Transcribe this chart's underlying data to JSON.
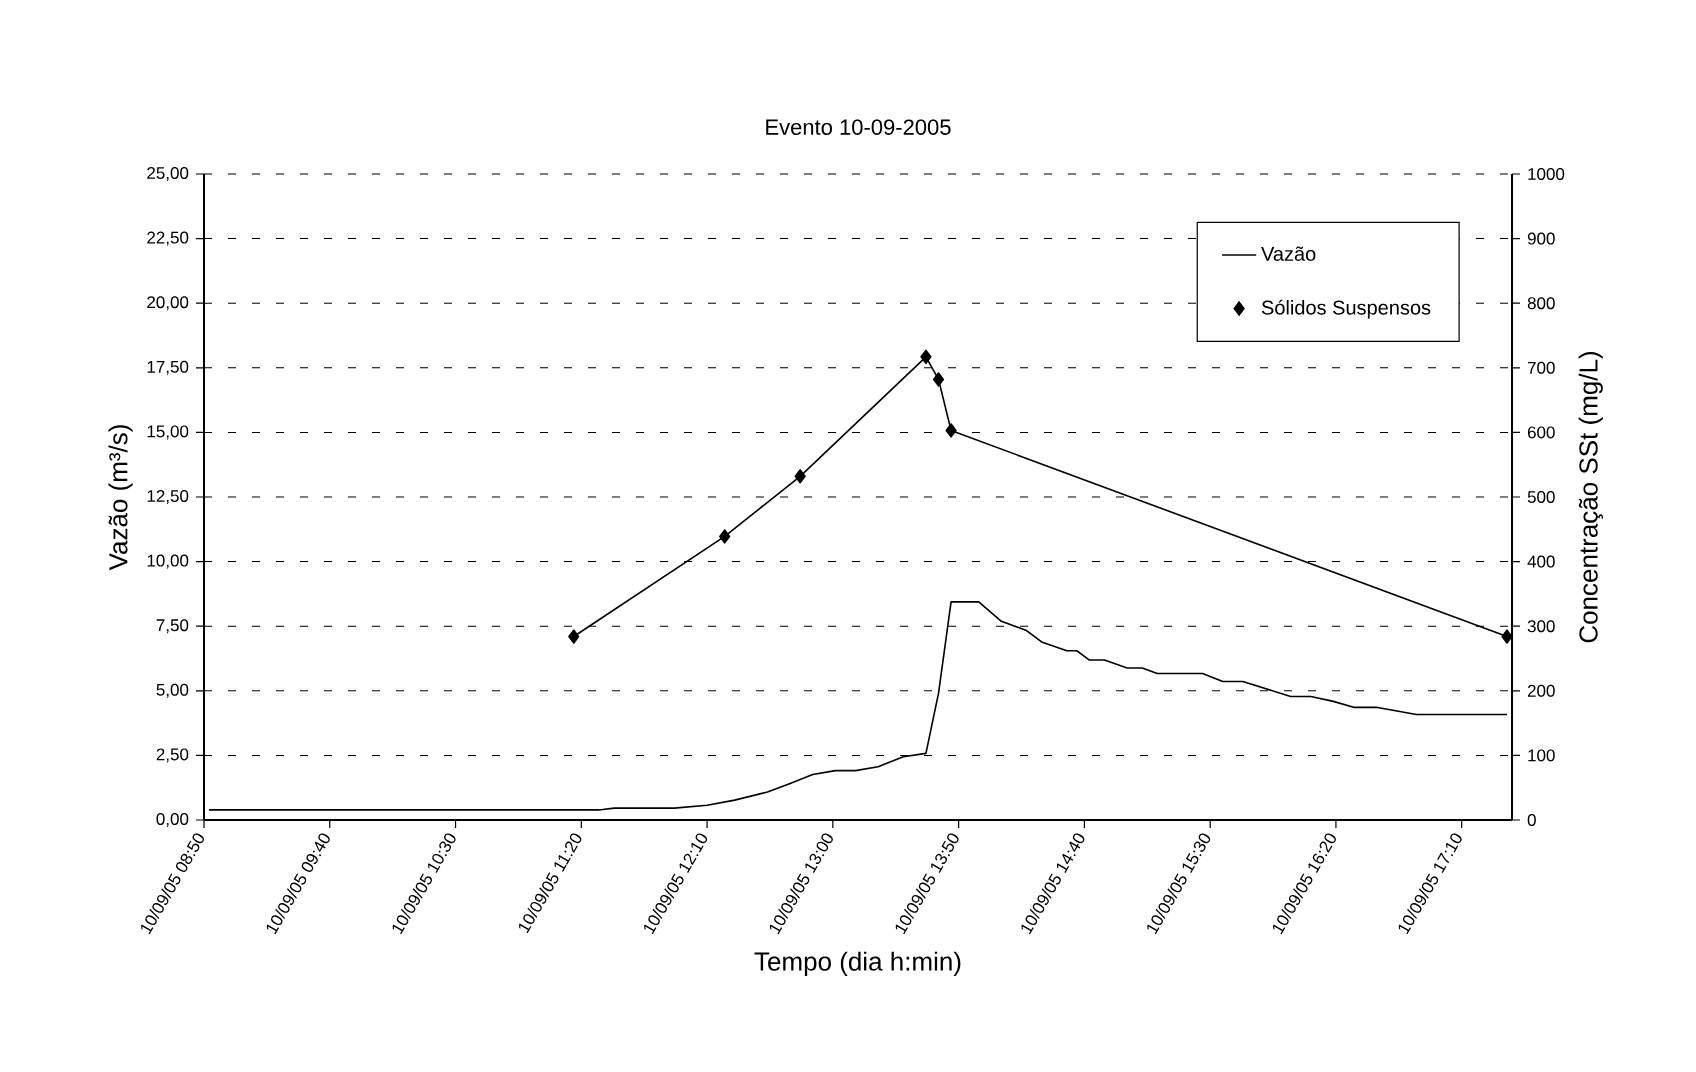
{
  "chart_data": {
    "type": "line",
    "title": "Evento 10-09-2005",
    "xlabel": "Tempo (dia h:min)",
    "ylabel": "Vazão (m³/s)",
    "y2label": "Concentração SSt (mg/L)",
    "xlim": [
      "2005-09-10T08:50",
      "2005-09-10T17:30"
    ],
    "xticks": [
      {
        "value": "2005-09-10T08:50",
        "label": "10/09/05 08:50"
      },
      {
        "value": "2005-09-10T09:40",
        "label": "10/09/05 09:40"
      },
      {
        "value": "2005-09-10T10:30",
        "label": "10/09/05 10:30"
      },
      {
        "value": "2005-09-10T11:20",
        "label": "10/09/05 11:20"
      },
      {
        "value": "2005-09-10T12:10",
        "label": "10/09/05 12:10"
      },
      {
        "value": "2005-09-10T13:00",
        "label": "10/09/05 13:00"
      },
      {
        "value": "2005-09-10T13:50",
        "label": "10/09/05 13:50"
      },
      {
        "value": "2005-09-10T14:40",
        "label": "10/09/05 14:40"
      },
      {
        "value": "2005-09-10T15:30",
        "label": "10/09/05 15:30"
      },
      {
        "value": "2005-09-10T16:20",
        "label": "10/09/05 16:20"
      },
      {
        "value": "2005-09-10T17:10",
        "label": "10/09/05 17:10"
      }
    ],
    "ylim": [
      0,
      25
    ],
    "yticks": [
      {
        "value": 0,
        "label": "0,00"
      },
      {
        "value": 2.5,
        "label": "2,50"
      },
      {
        "value": 5,
        "label": "5,00"
      },
      {
        "value": 7.5,
        "label": "7,50"
      },
      {
        "value": 10,
        "label": "10,00"
      },
      {
        "value": 12.5,
        "label": "12,50"
      },
      {
        "value": 15,
        "label": "15,00"
      },
      {
        "value": 17.5,
        "label": "17,50"
      },
      {
        "value": 20,
        "label": "20,00"
      },
      {
        "value": 22.5,
        "label": "22,50"
      },
      {
        "value": 25,
        "label": "25,00"
      }
    ],
    "y2lim": [
      0,
      1000
    ],
    "y2ticks": [
      0,
      100,
      200,
      300,
      400,
      500,
      600,
      700,
      800,
      900,
      1000
    ],
    "grid": "y",
    "legend": "top right",
    "series": [
      {
        "name": "Vazão",
        "color": "#000000",
        "marker": "none",
        "x": [
          "2005-09-10T08:52",
          "2005-09-10T11:27",
          "2005-09-10T11:33",
          "2005-09-10T11:57",
          "2005-09-10T12:10",
          "2005-09-10T12:21",
          "2005-09-10T12:34",
          "2005-09-10T12:42",
          "2005-09-10T12:52",
          "2005-09-10T13:01",
          "2005-09-10T13:09",
          "2005-09-10T13:18",
          "2005-09-10T13:28",
          "2005-09-10T13:37",
          "2005-09-10T13:42",
          "2005-09-10T13:47",
          "2005-09-10T13:58",
          "2005-09-10T14:07",
          "2005-09-10T14:17",
          "2005-09-10T14:23",
          "2005-09-10T14:33",
          "2005-09-10T14:37",
          "2005-09-10T14:42",
          "2005-09-10T14:48",
          "2005-09-10T14:57",
          "2005-09-10T15:03",
          "2005-09-10T15:09",
          "2005-09-10T15:27",
          "2005-09-10T15:35",
          "2005-09-10T15:43",
          "2005-09-10T16:02",
          "2005-09-10T16:10",
          "2005-09-10T16:19",
          "2005-09-10T16:27",
          "2005-09-10T16:36",
          "2005-09-10T16:52",
          "2005-09-10T17:28"
        ],
        "values": [
          0.39,
          0.39,
          0.46,
          0.46,
          0.57,
          0.77,
          1.08,
          1.37,
          1.76,
          1.91,
          1.91,
          2.06,
          2.45,
          2.58,
          4.9,
          8.44,
          8.44,
          7.69,
          7.33,
          6.89,
          6.55,
          6.55,
          6.19,
          6.19,
          5.88,
          5.88,
          5.67,
          5.67,
          5.36,
          5.36,
          4.78,
          4.78,
          4.59,
          4.36,
          4.36,
          4.08,
          4.08
        ]
      },
      {
        "name": "Sólidos Suspensos",
        "color": "#000000",
        "marker": "diamond",
        "axis": "y2",
        "x": [
          "2005-09-10T11:17",
          "2005-09-10T12:17",
          "2005-09-10T12:47",
          "2005-09-10T13:37",
          "2005-09-10T13:42",
          "2005-09-10T13:47",
          "2005-09-10T17:28"
        ],
        "values": [
          284,
          439,
          532,
          717,
          682,
          603,
          284
        ]
      }
    ]
  }
}
